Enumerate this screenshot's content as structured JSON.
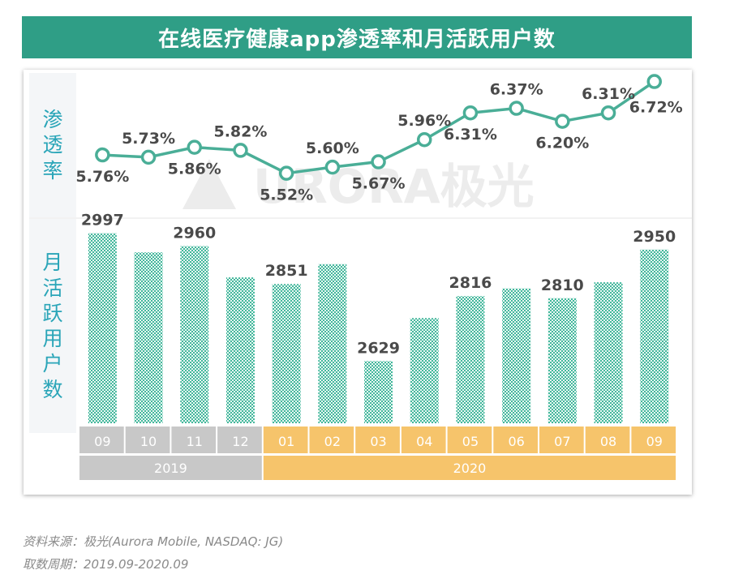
{
  "title": "在线医疗健康app渗透率和月活跃用户数",
  "labels": {
    "penetration_chars": [
      "渗",
      "透",
      "率"
    ],
    "mau_chars": [
      "月",
      "活",
      "跃",
      "用",
      "户",
      "数"
    ]
  },
  "watermark": "URORA极光",
  "colors": {
    "title_bg": "#2f9e86",
    "line": "#4aae97",
    "bar": "#4fbfa8",
    "year_2019": "#c8c8c8",
    "year_2020": "#f6c46b",
    "side_label": "#2aa5b8"
  },
  "chart_data": [
    {
      "type": "line",
      "name": "渗透率",
      "categories": [
        "09",
        "10",
        "11",
        "12",
        "01",
        "02",
        "03",
        "04",
        "05",
        "06",
        "07",
        "08",
        "09"
      ],
      "values": [
        5.76,
        5.73,
        5.86,
        5.82,
        5.52,
        5.6,
        5.67,
        5.96,
        6.31,
        6.37,
        6.2,
        6.31,
        6.72
      ],
      "data_labels": [
        "5.76%",
        "5.73%",
        "5.86%",
        "5.82%",
        "5.52%",
        "5.60%",
        "5.67%",
        "5.96%",
        "6.31%",
        "6.37%",
        "6.20%",
        "6.31%",
        "6.72%"
      ],
      "ylim": [
        5.4,
        6.8
      ],
      "grid": false
    },
    {
      "type": "bar",
      "name": "月活跃用户数",
      "categories": [
        "09",
        "10",
        "11",
        "12",
        "01",
        "02",
        "03",
        "04",
        "05",
        "06",
        "07",
        "08",
        "09"
      ],
      "values": [
        2997,
        2942,
        2960,
        2870,
        2851,
        2908,
        2629,
        2753,
        2816,
        2838,
        2810,
        2856,
        2950
      ],
      "data_labels": [
        "2997",
        "",
        "2960",
        "",
        "2851",
        "",
        "2629",
        "",
        "2816",
        "",
        "2810",
        "",
        "2950"
      ],
      "ylim": [
        2450,
        3050
      ],
      "grid": false
    }
  ],
  "x_axis": {
    "months": [
      "09",
      "10",
      "11",
      "12",
      "01",
      "02",
      "03",
      "04",
      "05",
      "06",
      "07",
      "08",
      "09"
    ],
    "years": [
      {
        "label": "2019",
        "count": 4
      },
      {
        "label": "2020",
        "count": 9
      }
    ]
  },
  "source": {
    "data_source": "资料来源：极光(Aurora Mobile, NASDAQ: JG)",
    "period": "取数周期：2019.09-2020.09"
  }
}
